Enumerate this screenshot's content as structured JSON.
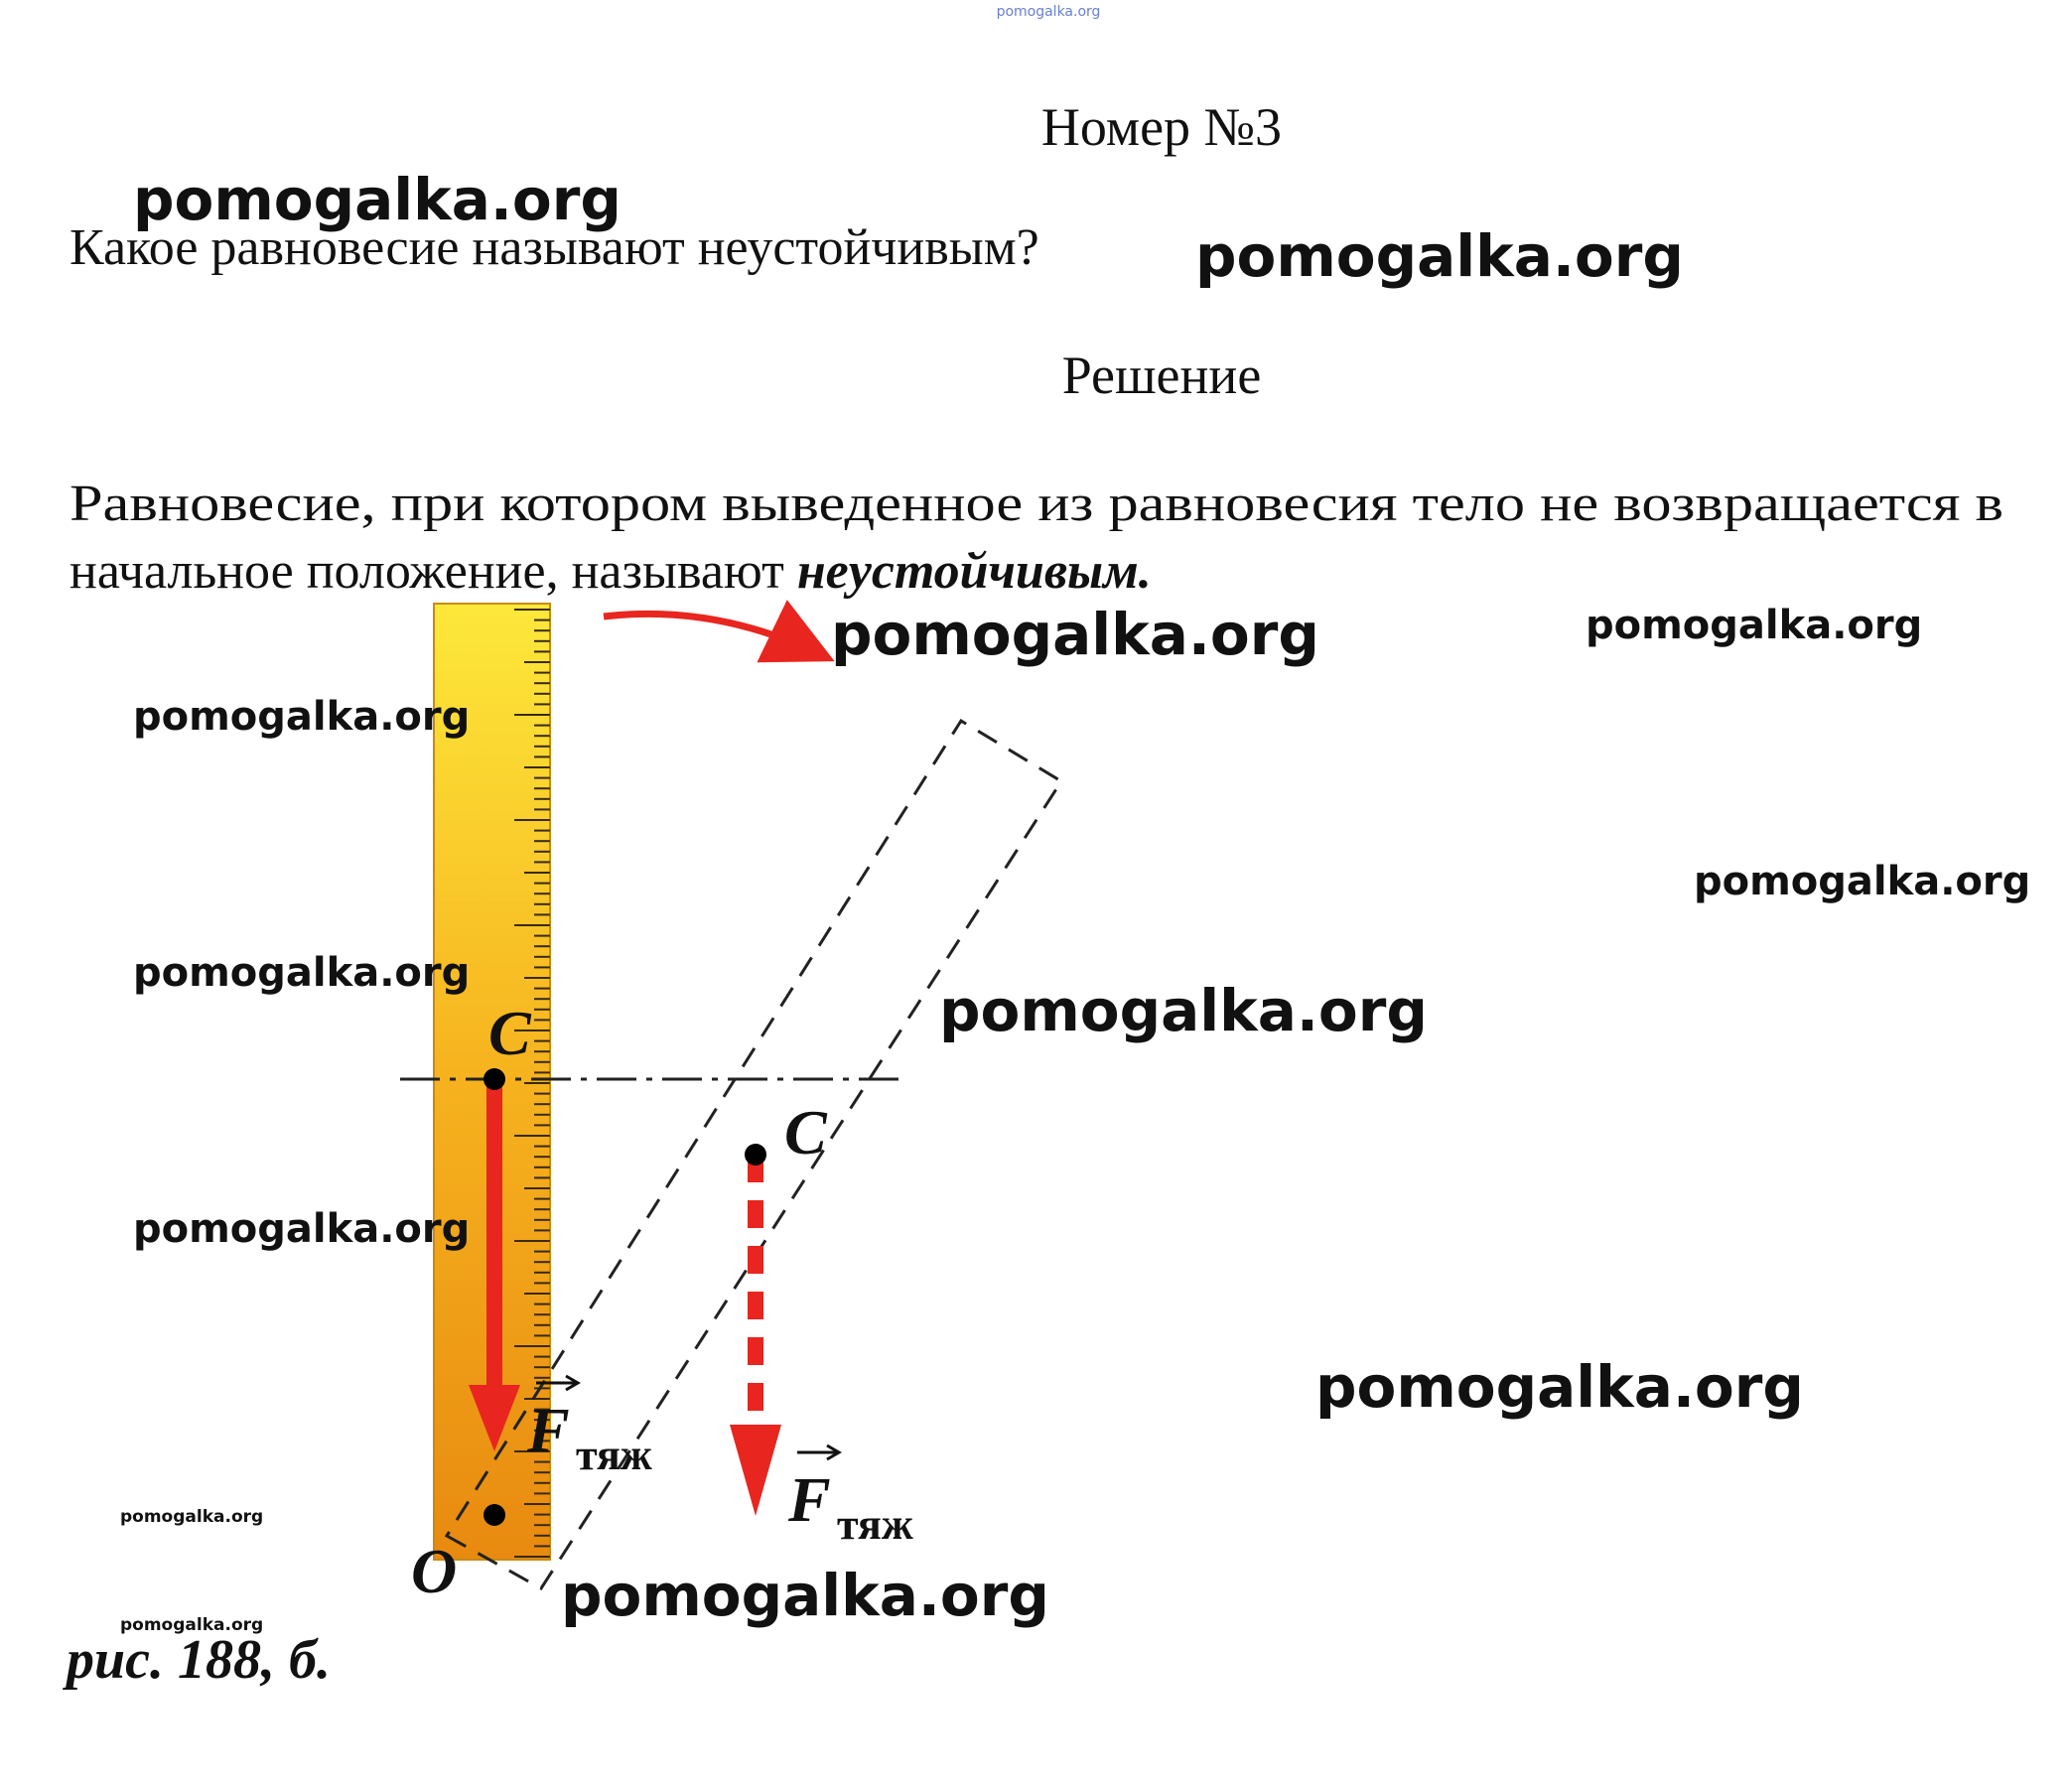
{
  "header": {
    "watermark": "pomogalka.org",
    "title": "Номер №3"
  },
  "question": "Какое равновесие называют неустойчивым?",
  "solution_heading": "Решение",
  "answer": {
    "line1": "Равновесие, при котором выведенное из равновесия тело не возвращается в",
    "line2": "начальное положение, называют ",
    "emphasis": "неустойчивым."
  },
  "figure": {
    "center_label_1": "C",
    "center_label_2": "C",
    "origin_label": "O",
    "force_symbol_1": "F",
    "force_subscript_1": "тяж",
    "force_symbol_2": "F",
    "force_subscript_2": "тяж",
    "caption": "рис. 188, б."
  },
  "watermarks": [
    "pomogalka.org",
    "pomogalka.org",
    "pomogalka.org",
    "pomogalka.org",
    "pomogalka.org",
    "pomogalka.org",
    "pomogalka.org",
    "pomogalka.org",
    "pomogalka.org",
    "pomogalka.org",
    "pomogalka.org",
    "pomogalka.org",
    "pomogalka.org"
  ]
}
